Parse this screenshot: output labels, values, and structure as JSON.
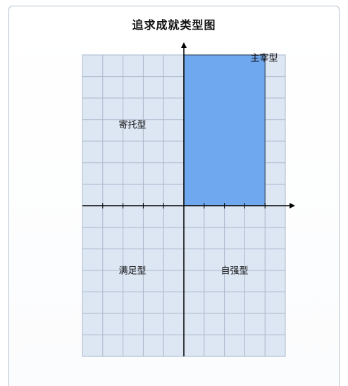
{
  "chart_data": {
    "type": "bar",
    "title": "追求成就类型图",
    "xlim": [
      -5,
      5
    ],
    "ylim": [
      -7,
      7
    ],
    "grid": true,
    "quadrants": [
      {
        "id": "q1",
        "label": "主宰型"
      },
      {
        "id": "q2",
        "label": "寄托型"
      },
      {
        "id": "q3",
        "label": "满足型"
      },
      {
        "id": "q4",
        "label": "自强型"
      }
    ],
    "bars": [
      {
        "x0": 0,
        "x1": 4,
        "y0": 0,
        "y1": 7,
        "color": "#6fa8ee"
      }
    ],
    "colors": {
      "grid_fill": "#dde6f3",
      "grid_line": "#a9b8cc",
      "axis": "#000000",
      "bar": "#6fa8ee"
    }
  }
}
